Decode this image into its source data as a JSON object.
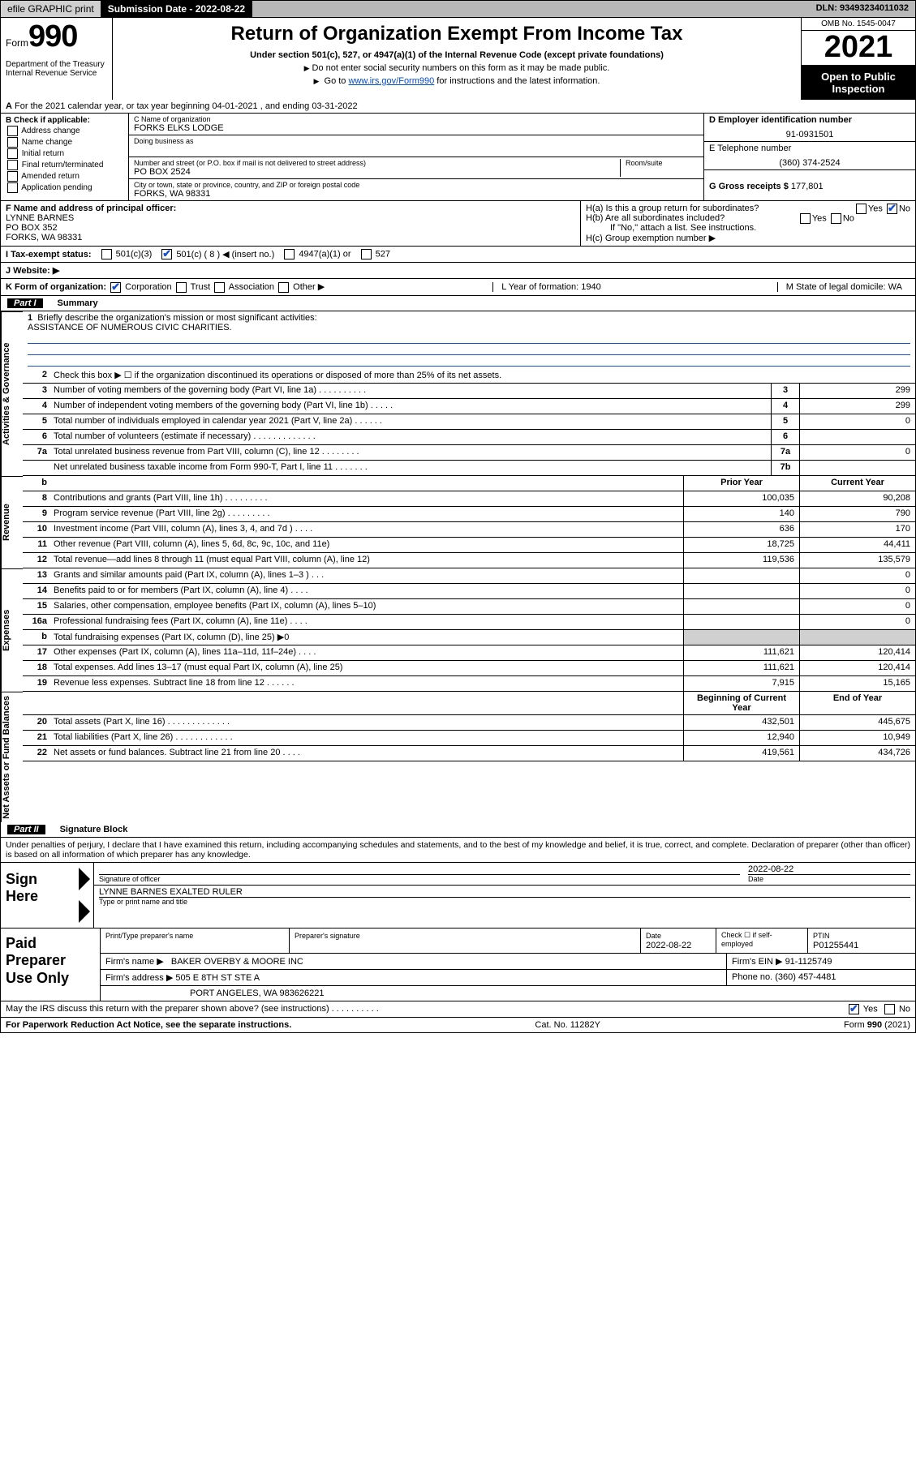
{
  "topbar": {
    "efile": "efile GRAPHIC print",
    "subdate_label": "Submission Date - 2022-08-22",
    "dln": "DLN: 93493234011032"
  },
  "header": {
    "form_label": "Form",
    "form_no": "990",
    "title": "Return of Organization Exempt From Income Tax",
    "subtitle": "Under section 501(c), 527, or 4947(a)(1) of the Internal Revenue Code (except private foundations)",
    "note1": "Do not enter social security numbers on this form as it may be made public.",
    "note2_pre": "Go to ",
    "note2_link": "www.irs.gov/Form990",
    "note2_post": " for instructions and the latest information.",
    "dept": "Department of the Treasury Internal Revenue Service",
    "omb": "OMB No. 1545-0047",
    "year": "2021",
    "otp": "Open to Public Inspection"
  },
  "line_a": "For the 2021 calendar year, or tax year beginning 04-01-2021   , and ending 03-31-2022",
  "section_b": {
    "label": "B Check if applicable:",
    "items": [
      "Address change",
      "Name change",
      "Initial return",
      "Final return/terminated",
      "Amended return",
      "Application pending"
    ]
  },
  "section_c": {
    "name_label": "C Name of organization",
    "name": "FORKS ELKS LODGE",
    "dba_label": "Doing business as",
    "addr_label": "Number and street (or P.O. box if mail is not delivered to street address)",
    "room_label": "Room/suite",
    "addr": "PO BOX 2524",
    "city_label": "City or town, state or province, country, and ZIP or foreign postal code",
    "city": "FORKS, WA  98331"
  },
  "section_d": {
    "ein_label": "D Employer identification number",
    "ein": "91-0931501",
    "phone_label": "E Telephone number",
    "phone": "(360) 374-2524",
    "gross_label": "G Gross receipts $",
    "gross": "177,801"
  },
  "section_f": {
    "label": "F  Name and address of principal officer:",
    "name": "LYNNE BARNES",
    "addr1": "PO BOX 352",
    "addr2": "FORKS, WA  98331"
  },
  "section_h": {
    "ha": "H(a)  Is this a group return for subordinates?",
    "hb": "H(b)  Are all subordinates included?",
    "hb_note": "If \"No,\" attach a list. See instructions.",
    "hc": "H(c)  Group exemption number ▶",
    "yes": "Yes",
    "no": "No"
  },
  "row_i": {
    "label": "I    Tax-exempt status:",
    "o1": "501(c)(3)",
    "o2": "501(c) ( 8 ) ◀ (insert no.)",
    "o3": "4947(a)(1) or",
    "o4": "527"
  },
  "row_j": "J    Website: ▶",
  "row_k": {
    "left_label": "K Form of organization:",
    "corp": "Corporation",
    "trust": "Trust",
    "assoc": "Association",
    "other": "Other ▶",
    "l": "L Year of formation: 1940",
    "m": "M State of legal domicile: WA"
  },
  "part1": {
    "pn": "Part I",
    "title": "Summary"
  },
  "mission": {
    "num": "1",
    "label": "Briefly describe the organization's mission or most significant activities:",
    "text": "ASSISTANCE OF NUMEROUS CIVIC CHARITIES."
  },
  "gov_rows": [
    {
      "n": "2",
      "t": "Check this box ▶ ☐   if the organization discontinued its operations or disposed of more than 25% of its net assets.",
      "box": "",
      "v": ""
    },
    {
      "n": "3",
      "t": "Number of voting members of the governing body (Part VI, line 1a)   .    .    .    .    .    .    .    .    .    .",
      "box": "3",
      "v": "299"
    },
    {
      "n": "4",
      "t": "Number of independent voting members of the governing body (Part VI, line 1b)    .    .    .    .    .",
      "box": "4",
      "v": "299"
    },
    {
      "n": "5",
      "t": "Total number of individuals employed in calendar year 2021 (Part V, line 2a)    .    .    .    .    .    .",
      "box": "5",
      "v": "0"
    },
    {
      "n": "6",
      "t": "Total number of volunteers (estimate if necessary)    .    .    .    .    .    .    .    .    .    .    .    .    .",
      "box": "6",
      "v": ""
    },
    {
      "n": "7a",
      "t": "Total unrelated business revenue from Part VIII, column (C), line 12    .    .    .    .    .    .    .    .",
      "box": "7a",
      "v": "0"
    },
    {
      "n": "",
      "t": "Net unrelated business taxable income from Form 990-T, Part I, line 11    .    .    .    .    .    .    .",
      "box": "7b",
      "v": ""
    }
  ],
  "twocol_header": {
    "prior": "Prior Year",
    "current": "Current Year"
  },
  "revenue_rows": [
    {
      "n": "8",
      "t": "Contributions and grants (Part VIII, line 1h)    .    .    .    .    .    .    .    .    .",
      "p": "100,035",
      "c": "90,208"
    },
    {
      "n": "9",
      "t": "Program service revenue (Part VIII, line 2g)    .    .    .    .    .    .    .    .    .",
      "p": "140",
      "c": "790"
    },
    {
      "n": "10",
      "t": "Investment income (Part VIII, column (A), lines 3, 4, and 7d )    .    .    .    .",
      "p": "636",
      "c": "170"
    },
    {
      "n": "11",
      "t": "Other revenue (Part VIII, column (A), lines 5, 6d, 8c, 9c, 10c, and 11e)",
      "p": "18,725",
      "c": "44,411"
    },
    {
      "n": "12",
      "t": "Total revenue—add lines 8 through 11 (must equal Part VIII, column (A), line 12)",
      "p": "119,536",
      "c": "135,579"
    }
  ],
  "expense_rows": [
    {
      "n": "13",
      "t": "Grants and similar amounts paid (Part IX, column (A), lines 1–3 )    .    .    .",
      "p": "",
      "c": "0"
    },
    {
      "n": "14",
      "t": "Benefits paid to or for members (Part IX, column (A), line 4)    .    .    .    .",
      "p": "",
      "c": "0"
    },
    {
      "n": "15",
      "t": "Salaries, other compensation, employee benefits (Part IX, column (A), lines 5–10)",
      "p": "",
      "c": "0"
    },
    {
      "n": "16a",
      "t": "Professional fundraising fees (Part IX, column (A), line 11e)    .    .    .    .",
      "p": "",
      "c": "0"
    },
    {
      "n": "b",
      "t": "Total fundraising expenses (Part IX, column (D), line 25) ▶0",
      "p": "GREY",
      "c": "GREY"
    },
    {
      "n": "17",
      "t": "Other expenses (Part IX, column (A), lines 11a–11d, 11f–24e)    .    .    .    .",
      "p": "111,621",
      "c": "120,414"
    },
    {
      "n": "18",
      "t": "Total expenses. Add lines 13–17 (must equal Part IX, column (A), line 25)",
      "p": "111,621",
      "c": "120,414"
    },
    {
      "n": "19",
      "t": "Revenue less expenses. Subtract line 18 from line 12    .    .    .    .    .    .",
      "p": "7,915",
      "c": "15,165"
    }
  ],
  "net_header": {
    "b": "Beginning of Current Year",
    "e": "End of Year"
  },
  "net_rows": [
    {
      "n": "20",
      "t": "Total assets (Part X, line 16)    .    .    .    .    .    .    .    .    .    .    .    .    .",
      "p": "432,501",
      "c": "445,675"
    },
    {
      "n": "21",
      "t": "Total liabilities (Part X, line 26)    .    .    .    .    .    .    .    .    .    .    .    .",
      "p": "12,940",
      "c": "10,949"
    },
    {
      "n": "22",
      "t": "Net assets or fund balances. Subtract line 21 from line 20    .    .    .    .",
      "p": "419,561",
      "c": "434,726"
    }
  ],
  "part2": {
    "pn": "Part II",
    "title": "Signature Block"
  },
  "declaration": "Under penalties of perjury, I declare that I have examined this return, including accompanying schedules and statements, and to the best of my knowledge and belief, it is true, correct, and complete. Declaration of preparer (other than officer) is based on all information of which preparer has any knowledge.",
  "sign": {
    "label": "Sign Here",
    "sig_label": "Signature of officer",
    "date": "2022-08-22",
    "date_label": "Date",
    "name": "LYNNE BARNES  EXALTED RULER",
    "name_label": "Type or print name and title"
  },
  "paid": {
    "label": "Paid Preparer Use Only",
    "h1": "Print/Type preparer's name",
    "h2": "Preparer's signature",
    "h3": "Date",
    "h3v": "2022-08-22",
    "h4": "Check ☐ if self-employed",
    "h5": "PTIN",
    "h5v": "P01255441",
    "firm_label": "Firm's name    ▶",
    "firm": "BAKER OVERBY & MOORE INC",
    "firm_ein_label": "Firm's EIN ▶",
    "firm_ein": "91-1125749",
    "firm_addr_label": "Firm's address ▶",
    "firm_addr1": "505 E 8TH ST STE A",
    "firm_addr2": "PORT ANGELES, WA  983626221",
    "phone_label": "Phone no.",
    "phone": "(360) 457-4481"
  },
  "discuss": {
    "txt": "May the IRS discuss this return with the preparer shown above? (see instructions)    .    .    .    .    .    .    .    .    .    .",
    "yes": "Yes",
    "no": "No"
  },
  "footer": {
    "left": "For Paperwork Reduction Act Notice, see the separate instructions.",
    "mid": "Cat. No. 11282Y",
    "right_pre": "Form ",
    "right_b": "990",
    "right_post": " (2021)"
  },
  "vtabs": {
    "gov": "Activities & Governance",
    "rev": "Revenue",
    "exp": "Expenses",
    "net": "Net Assets or Fund Balances"
  }
}
